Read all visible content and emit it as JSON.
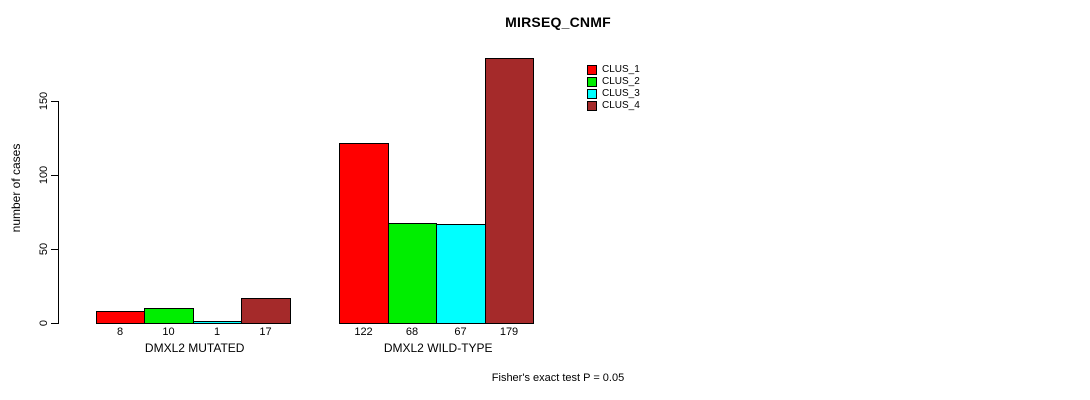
{
  "chart_data": {
    "type": "bar",
    "title": "MIRSEQ_CNMF",
    "ylabel": "number of cases",
    "xlabel": "",
    "yticks": [
      0,
      50,
      100,
      150
    ],
    "ylim": [
      0,
      179
    ],
    "grid": false,
    "legend_position": "top-right",
    "categories": [
      "DMXL2 MUTATED",
      "DMXL2 WILD-TYPE"
    ],
    "series": [
      {
        "name": "CLUS_1",
        "color": "#ff0000",
        "values": [
          8,
          122
        ]
      },
      {
        "name": "CLUS_2",
        "color": "#00ee00",
        "values": [
          10,
          68
        ]
      },
      {
        "name": "CLUS_3",
        "color": "#00ffff",
        "values": [
          1,
          67
        ]
      },
      {
        "name": "CLUS_4",
        "color": "#a52a2a",
        "values": [
          17,
          179
        ]
      }
    ],
    "bar_value_labels": [
      [
        8,
        10,
        1,
        17
      ],
      [
        122,
        68,
        67,
        179
      ]
    ],
    "annotation": "Fisher's exact test P = 0.05"
  }
}
